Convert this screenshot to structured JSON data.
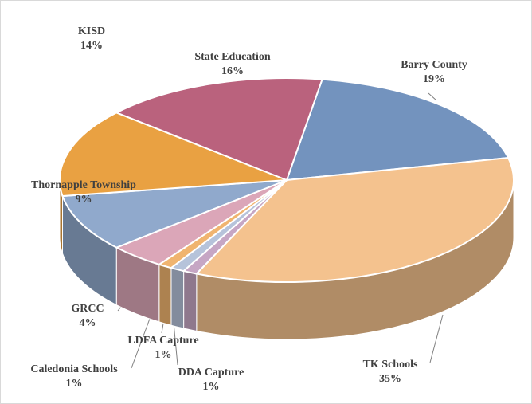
{
  "chart_data": {
    "type": "pie3d",
    "categories": [
      "Barry County",
      "TK Schools",
      "DDA Capture",
      "LDFA Capture",
      "Caledonia Schools",
      "GRCC",
      "Thornapple Township",
      "KISD",
      "State Education"
    ],
    "values": [
      19,
      35,
      1,
      1,
      1,
      4,
      9,
      14,
      16
    ],
    "value_labels": [
      "19%",
      "35%",
      "1%",
      "1%",
      "1%",
      "4%",
      "9%",
      "14%",
      "16%"
    ],
    "colors": [
      "#7393be",
      "#f4c28e",
      "#c6a6c4",
      "#b6c3da",
      "#f0b46f",
      "#dba6b8",
      "#90a9cc",
      "#e9a142",
      "#ba627d"
    ]
  }
}
